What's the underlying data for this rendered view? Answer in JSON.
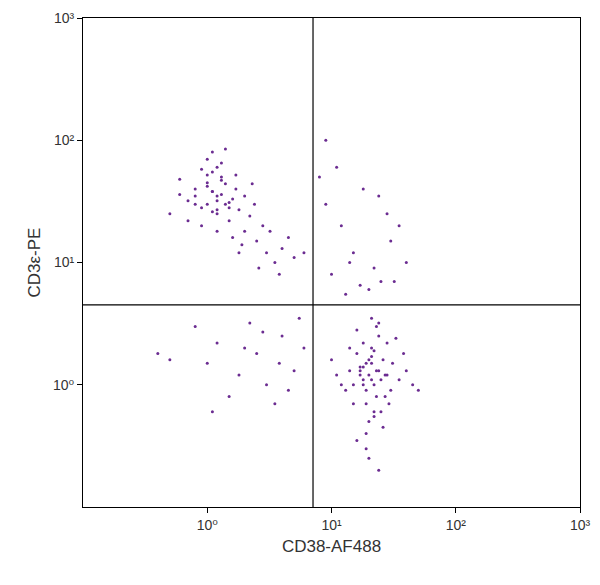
{
  "chart_data": {
    "type": "scatter",
    "x_label": "CD38-AF488",
    "y_label": "CD3ε-PE",
    "log": true,
    "grid": false,
    "color": "#6b2c91",
    "marker": "dot",
    "xlim": [
      0.1,
      1000
    ],
    "ylim": [
      0.1,
      1000
    ],
    "xticks": [
      {
        "value": 1,
        "label": "10⁰"
      },
      {
        "value": 10,
        "label": "10¹"
      },
      {
        "value": 100,
        "label": "10²"
      },
      {
        "value": 1000,
        "label": "10³"
      }
    ],
    "yticks": [
      {
        "value": 1,
        "label": "10⁰"
      },
      {
        "value": 10,
        "label": "10¹"
      },
      {
        "value": 100,
        "label": "10²"
      },
      {
        "value": 1000,
        "label": "10³"
      }
    ],
    "quadrant_x": 7.1,
    "quadrant_y": 4.5,
    "x": [
      1.2,
      1.0,
      1.4,
      0.9,
      1.1,
      1.3,
      1.6,
      0.8,
      1.2,
      1.0,
      1.5,
      1.1,
      0.7,
      1.3,
      1.8,
      1.0,
      1.2,
      0.9,
      1.4,
      1.1,
      2.0,
      1.7,
      0.6,
      1.3,
      2.5,
      1.0,
      1.5,
      0.8,
      1.2,
      2.2,
      3.0,
      2.8,
      1.9,
      0.5,
      1.1,
      3.5,
      4.0,
      2.4,
      1.6,
      0.7,
      1.0,
      1.3,
      2.0,
      0.9,
      1.2,
      1.8,
      3.2,
      5.0,
      2.6,
      1.4,
      1.1,
      0.6,
      2.3,
      1.7,
      4.5,
      6.0,
      3.8,
      1.2,
      0.8,
      1.5,
      20,
      22,
      18,
      25,
      19,
      21,
      17,
      24,
      23,
      20,
      15,
      28,
      16,
      30,
      21,
      19,
      26,
      14,
      22,
      18,
      35,
      12,
      20,
      24,
      27,
      17,
      40,
      13,
      23,
      19,
      21,
      25,
      16,
      31,
      45,
      11,
      19,
      22,
      28,
      18,
      20,
      23,
      26,
      15,
      18,
      33,
      21,
      10,
      24,
      50,
      17,
      22,
      19,
      27,
      14,
      29,
      21,
      38,
      16,
      24,
      1.0,
      2.0,
      3.0,
      1.5,
      4.0,
      2.5,
      0.8,
      5.0,
      3.5,
      1.2,
      6.0,
      2.2,
      0.5,
      3.8,
      1.8,
      4.5,
      2.8,
      1.1,
      0.4,
      5.5,
      10,
      15,
      20,
      12,
      30,
      25,
      9,
      18,
      35,
      14,
      11,
      22,
      28,
      40,
      13,
      17,
      9,
      32,
      24,
      8
    ],
    "values": [
      35,
      42,
      30,
      28,
      38,
      50,
      33,
      40,
      25,
      45,
      22,
      55,
      32,
      36,
      27,
      30,
      60,
      20,
      44,
      26,
      18,
      40,
      48,
      65,
      15,
      70,
      28,
      35,
      18,
      24,
      12,
      20,
      14,
      25,
      80,
      10,
      13,
      30,
      16,
      22,
      52,
      47,
      35,
      58,
      32,
      12,
      18,
      11,
      9,
      85,
      38,
      36,
      44,
      52,
      16,
      12,
      8,
      27,
      30,
      31,
      1.2,
      1.0,
      1.4,
      1.1,
      0.9,
      1.5,
      1.2,
      1.3,
      0.8,
      1.6,
      1.0,
      1.2,
      1.8,
      0.9,
      2.0,
      0.7,
      1.6,
      1.3,
      0.6,
      2.2,
      1.1,
      1.0,
      0.5,
      2.5,
      0.8,
      1.4,
      1.3,
      0.9,
      3.0,
      0.4,
      1.7,
      0.6,
      2.8,
      1.5,
      1.0,
      1.2,
      0.3,
      1.9,
      2.2,
      1.1,
      0.25,
      1.3,
      0.45,
      0.7,
      1.0,
      2.4,
      3.5,
      1.6,
      0.2,
      0.9,
      1.3,
      0.55,
      1.5,
      1.2,
      2.0,
      0.7,
      1.1,
      1.8,
      0.35,
      3.2,
      1.5,
      2.0,
      1.0,
      0.8,
      2.5,
      1.8,
      3.0,
      1.3,
      0.7,
      2.2,
      2.0,
      3.2,
      1.6,
      1.5,
      1.2,
      0.9,
      2.7,
      0.6,
      1.8,
      3.5,
      8,
      12,
      6,
      20,
      15,
      7,
      30,
      40,
      20,
      10,
      60,
      9,
      25,
      10,
      5.5,
      6.5,
      100,
      7,
      35,
      50
    ]
  }
}
